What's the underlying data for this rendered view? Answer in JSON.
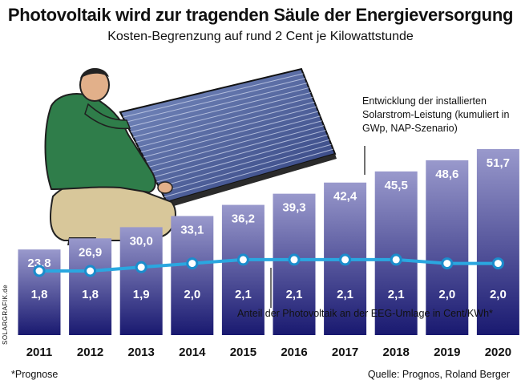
{
  "title": "Photovoltaik wird zur tragenden Säule der Energieversorgung",
  "subtitle": "Kosten-Begrenzung auf rund 2 Cent je Kilowattstunde",
  "legend_bars": "Entwicklung der installierten Solarstrom-Leistung (kumuliert in GWp, NAP-Szenario)",
  "legend_line": "Anteil der Photovoltaik an der EEG-Umlage in Cent/KWh*",
  "credit": "SOLARGRAFIK.de",
  "footnote": "*Prognose",
  "source": "Quelle: Prognos, Roland Berger",
  "chart_data": {
    "type": "bar",
    "categories": [
      "2011",
      "2012",
      "2013",
      "2014",
      "2015",
      "2016",
      "2017",
      "2018",
      "2019",
      "2020"
    ],
    "series": [
      {
        "name": "Entwicklung der installierten Solarstrom-Leistung (kumuliert in GWp, NAP-Szenario)",
        "type": "bar",
        "values": [
          23.8,
          26.9,
          30.0,
          33.1,
          36.2,
          39.3,
          42.4,
          45.5,
          48.6,
          51.7
        ],
        "labels": [
          "23,8",
          "26,9",
          "30,0",
          "33,1",
          "36,2",
          "39,3",
          "42,4",
          "45,5",
          "48,6",
          "51,7"
        ]
      },
      {
        "name": "Anteil der Photovoltaik an der EEG-Umlage in Cent/KWh*",
        "type": "line",
        "values": [
          1.8,
          1.8,
          1.9,
          2.0,
          2.1,
          2.1,
          2.1,
          2.1,
          2.0,
          2.0
        ],
        "labels": [
          "1,8",
          "1,8",
          "1,9",
          "2,0",
          "2,1",
          "2,1",
          "2,1",
          "2,1",
          "2,0",
          "2,0"
        ]
      }
    ],
    "colors": {
      "bar_top": "#9999cc",
      "bar_bottom": "#191970",
      "line": "#2aa7e0",
      "marker_stroke": "#1b8ccc"
    }
  }
}
